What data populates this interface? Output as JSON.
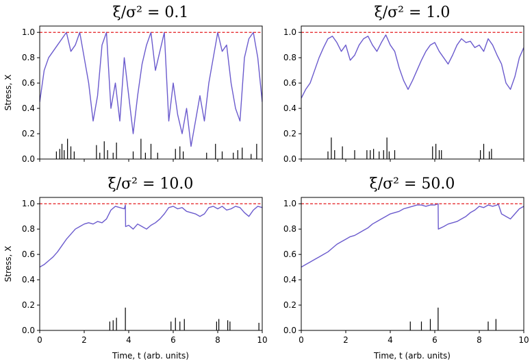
{
  "chart_data": [
    {
      "type": "line",
      "title": "ξ/σ² = 0.1",
      "ylabel": "Stress, X",
      "xlabel": "",
      "xlim": [
        0,
        10
      ],
      "ylim": [
        0,
        1.05
      ],
      "xticks": [
        "",
        "",
        "",
        "",
        "",
        ""
      ],
      "yticks": [
        "0.0",
        "0.2",
        "0.4",
        "0.6",
        "0.8",
        "1.0"
      ],
      "threshold": 1.0,
      "line_color": "#6a5acd",
      "threshold_color": "#e41a1c",
      "series": [
        {
          "x": [
            0,
            0.2,
            0.4,
            0.6,
            0.8,
            1.0,
            1.2,
            1.4,
            1.6,
            1.8,
            2.0,
            2.2,
            2.4,
            2.6,
            2.8,
            3.0,
            3.2,
            3.4,
            3.6,
            3.8,
            4.0,
            4.2,
            4.4,
            4.6,
            4.8,
            5.0,
            5.2,
            5.4,
            5.6,
            5.8,
            6.0,
            6.2,
            6.4,
            6.6,
            6.8,
            7.0,
            7.2,
            7.4,
            7.6,
            7.8,
            8.0,
            8.2,
            8.4,
            8.6,
            8.8,
            9.0,
            9.2,
            9.4,
            9.6,
            9.8,
            10.0
          ],
          "y": [
            0.45,
            0.7,
            0.8,
            0.85,
            0.9,
            0.95,
            1.0,
            0.85,
            0.9,
            1.0,
            0.8,
            0.6,
            0.3,
            0.5,
            0.9,
            1.0,
            0.4,
            0.6,
            0.3,
            0.8,
            0.5,
            0.2,
            0.5,
            0.75,
            0.9,
            1.0,
            0.7,
            0.85,
            1.0,
            0.3,
            0.6,
            0.35,
            0.2,
            0.4,
            0.1,
            0.3,
            0.5,
            0.3,
            0.6,
            0.8,
            1.0,
            0.85,
            0.9,
            0.6,
            0.4,
            0.3,
            0.8,
            0.95,
            1.0,
            0.8,
            0.45
          ]
        }
      ],
      "events": {
        "x": [
          0.75,
          0.9,
          1.0,
          1.1,
          1.25,
          1.4,
          1.55,
          2.55,
          2.7,
          2.9,
          3.05,
          3.3,
          3.45,
          4.2,
          4.55,
          4.75,
          5.0,
          5.3,
          6.1,
          6.3,
          6.45,
          7.5,
          7.9,
          8.2,
          8.7,
          8.9,
          9.1,
          9.5,
          9.75
        ],
        "y": [
          0.06,
          0.08,
          0.12,
          0.07,
          0.16,
          0.1,
          0.06,
          0.11,
          0.05,
          0.14,
          0.07,
          0.05,
          0.13,
          0.06,
          0.16,
          0.05,
          0.12,
          0.05,
          0.08,
          0.1,
          0.06,
          0.05,
          0.12,
          0.06,
          0.05,
          0.07,
          0.09,
          0.04,
          0.12
        ]
      }
    },
    {
      "type": "line",
      "title": "ξ/σ² = 1.0",
      "ylabel": "",
      "xlabel": "",
      "xlim": [
        0,
        10
      ],
      "ylim": [
        0,
        1.05
      ],
      "xticks": [
        "",
        "",
        "",
        "",
        "",
        ""
      ],
      "yticks": [
        "0.0",
        "0.2",
        "0.4",
        "0.6",
        "0.8",
        "1.0"
      ],
      "threshold": 1.0,
      "line_color": "#6a5acd",
      "threshold_color": "#e41a1c",
      "series": [
        {
          "x": [
            0,
            0.2,
            0.4,
            0.6,
            0.8,
            1.0,
            1.2,
            1.4,
            1.6,
            1.8,
            2.0,
            2.2,
            2.4,
            2.6,
            2.8,
            3.0,
            3.2,
            3.4,
            3.6,
            3.8,
            4.0,
            4.2,
            4.4,
            4.6,
            4.8,
            5.0,
            5.2,
            5.4,
            5.6,
            5.8,
            6.0,
            6.2,
            6.4,
            6.6,
            6.8,
            7.0,
            7.2,
            7.4,
            7.6,
            7.8,
            8.0,
            8.2,
            8.4,
            8.6,
            8.8,
            9.0,
            9.2,
            9.4,
            9.6,
            9.8,
            10.0
          ],
          "y": [
            0.48,
            0.55,
            0.6,
            0.7,
            0.8,
            0.88,
            0.95,
            0.97,
            0.92,
            0.85,
            0.9,
            0.78,
            0.82,
            0.9,
            0.95,
            0.97,
            0.9,
            0.85,
            0.92,
            0.98,
            0.9,
            0.85,
            0.72,
            0.62,
            0.55,
            0.62,
            0.7,
            0.78,
            0.85,
            0.9,
            0.92,
            0.85,
            0.8,
            0.75,
            0.82,
            0.9,
            0.95,
            0.92,
            0.93,
            0.88,
            0.9,
            0.85,
            0.95,
            0.9,
            0.82,
            0.75,
            0.6,
            0.55,
            0.65,
            0.8,
            0.88
          ]
        }
      ],
      "events": {
        "x": [
          1.2,
          1.35,
          1.5,
          1.85,
          2.4,
          2.95,
          3.1,
          3.25,
          3.5,
          3.7,
          3.85,
          3.95,
          4.2,
          5.9,
          6.05,
          6.2,
          6.3,
          8.05,
          8.2,
          8.45,
          8.55
        ],
        "y": [
          0.06,
          0.17,
          0.07,
          0.1,
          0.07,
          0.07,
          0.07,
          0.08,
          0.06,
          0.07,
          0.17,
          0.06,
          0.07,
          0.1,
          0.12,
          0.07,
          0.07,
          0.07,
          0.12,
          0.06,
          0.08
        ]
      }
    },
    {
      "type": "line",
      "title": "ξ/σ² = 10.0",
      "ylabel": "Stress, X",
      "xlabel": "Time, t (arb. units)",
      "xlim": [
        0,
        10
      ],
      "ylim": [
        0,
        1.05
      ],
      "xticks": [
        "0",
        "2",
        "4",
        "6",
        "8",
        "10"
      ],
      "yticks": [
        "0.0",
        "0.2",
        "0.4",
        "0.6",
        "0.8",
        "1.0"
      ],
      "threshold": 1.0,
      "line_color": "#6a5acd",
      "threshold_color": "#e41a1c",
      "series": [
        {
          "x": [
            0,
            0.2,
            0.4,
            0.6,
            0.8,
            1.0,
            1.2,
            1.4,
            1.6,
            1.8,
            2.0,
            2.2,
            2.4,
            2.6,
            2.8,
            3.0,
            3.2,
            3.4,
            3.6,
            3.8,
            3.85,
            3.86,
            4.0,
            4.2,
            4.4,
            4.6,
            4.8,
            5.0,
            5.2,
            5.4,
            5.6,
            5.8,
            6.0,
            6.2,
            6.4,
            6.6,
            6.8,
            7.0,
            7.2,
            7.4,
            7.6,
            7.8,
            8.0,
            8.2,
            8.4,
            8.6,
            8.8,
            9.0,
            9.2,
            9.4,
            9.6,
            9.8,
            10.0
          ],
          "y": [
            0.5,
            0.52,
            0.55,
            0.58,
            0.62,
            0.67,
            0.72,
            0.76,
            0.8,
            0.82,
            0.84,
            0.85,
            0.84,
            0.86,
            0.85,
            0.88,
            0.95,
            0.98,
            0.97,
            0.96,
            0.99,
            0.82,
            0.83,
            0.8,
            0.84,
            0.82,
            0.8,
            0.83,
            0.85,
            0.88,
            0.92,
            0.97,
            0.98,
            0.96,
            0.97,
            0.94,
            0.93,
            0.92,
            0.9,
            0.92,
            0.97,
            0.98,
            0.96,
            0.98,
            0.95,
            0.96,
            0.98,
            0.97,
            0.93,
            0.9,
            0.95,
            0.98,
            0.97
          ]
        }
      ],
      "events": {
        "x": [
          3.15,
          3.3,
          3.45,
          3.85,
          5.9,
          6.1,
          6.3,
          6.5,
          7.95,
          8.05,
          8.45,
          8.55,
          9.85
        ],
        "y": [
          0.07,
          0.08,
          0.1,
          0.18,
          0.07,
          0.1,
          0.07,
          0.09,
          0.07,
          0.09,
          0.08,
          0.07,
          0.06
        ]
      }
    },
    {
      "type": "line",
      "title": "ξ/σ² = 50.0",
      "ylabel": "",
      "xlabel": "Time, t (arb. units)",
      "xlim": [
        0,
        10
      ],
      "ylim": [
        0,
        1.05
      ],
      "xticks": [
        "0",
        "2",
        "4",
        "6",
        "8",
        "10"
      ],
      "yticks": [
        "0.0",
        "0.2",
        "0.4",
        "0.6",
        "0.8",
        "1.0"
      ],
      "threshold": 1.0,
      "line_color": "#6a5acd",
      "threshold_color": "#e41a1c",
      "series": [
        {
          "x": [
            0,
            0.2,
            0.4,
            0.6,
            0.8,
            1.0,
            1.2,
            1.4,
            1.6,
            1.8,
            2.0,
            2.2,
            2.4,
            2.6,
            2.8,
            3.0,
            3.2,
            3.4,
            3.6,
            3.8,
            4.0,
            4.2,
            4.4,
            4.6,
            4.8,
            5.0,
            5.2,
            5.4,
            5.6,
            5.8,
            6.0,
            6.15,
            6.16,
            6.4,
            6.6,
            6.8,
            7.0,
            7.2,
            7.4,
            7.6,
            7.8,
            8.0,
            8.2,
            8.4,
            8.6,
            8.8,
            8.85,
            9.0,
            9.2,
            9.4,
            9.6,
            9.8,
            10.0
          ],
          "y": [
            0.5,
            0.52,
            0.54,
            0.56,
            0.58,
            0.6,
            0.62,
            0.65,
            0.68,
            0.7,
            0.72,
            0.74,
            0.75,
            0.77,
            0.79,
            0.81,
            0.84,
            0.86,
            0.88,
            0.9,
            0.92,
            0.93,
            0.94,
            0.96,
            0.97,
            0.98,
            0.99,
            0.99,
            0.98,
            0.99,
            0.99,
            1.0,
            0.8,
            0.82,
            0.84,
            0.85,
            0.86,
            0.88,
            0.9,
            0.93,
            0.95,
            0.98,
            0.97,
            0.99,
            0.98,
            0.99,
            1.0,
            0.92,
            0.9,
            0.88,
            0.92,
            0.96,
            0.98
          ]
        }
      ],
      "events": {
        "x": [
          4.9,
          5.4,
          5.8,
          6.15,
          8.4,
          8.75
        ],
        "y": [
          0.07,
          0.07,
          0.09,
          0.18,
          0.07,
          0.09
        ]
      }
    }
  ]
}
